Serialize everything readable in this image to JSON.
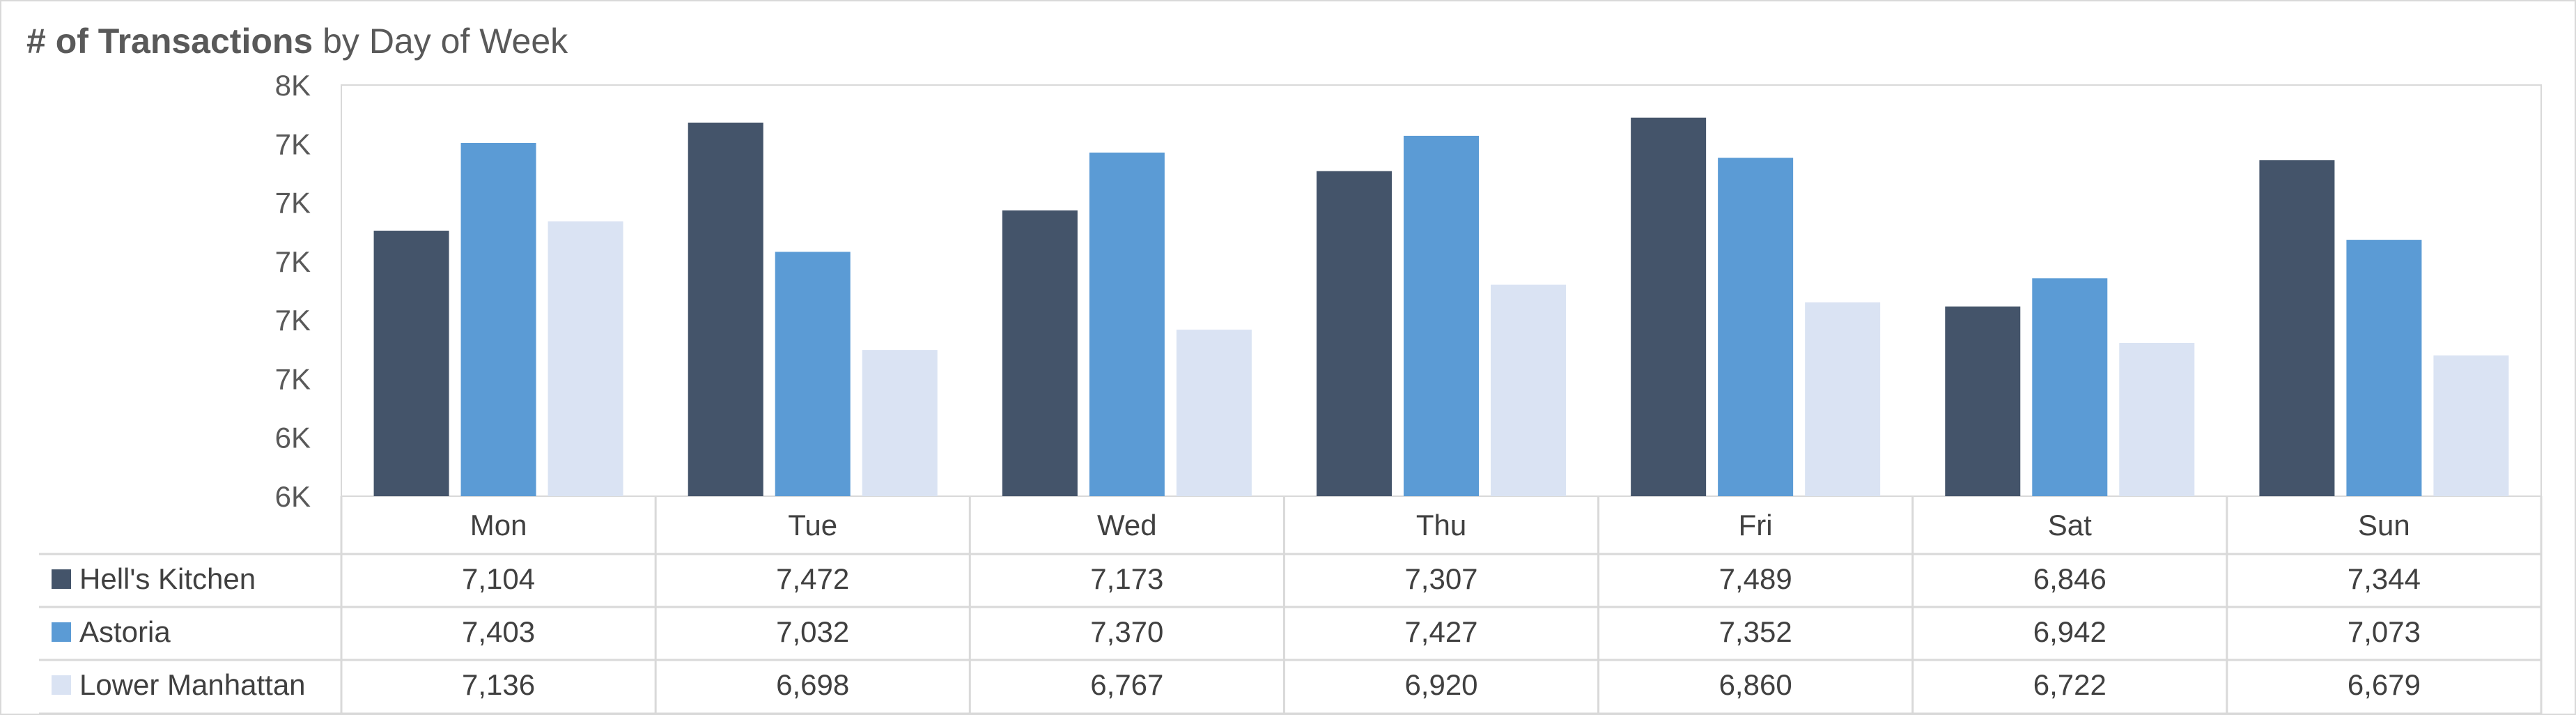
{
  "title": {
    "bold": "# of Transactions",
    "rest": " by Day of Week"
  },
  "chart_data": {
    "type": "bar",
    "title": "# of Transactions by Day of Week",
    "categories": [
      "Mon",
      "Tue",
      "Wed",
      "Thu",
      "Fri",
      "Sat",
      "Sun"
    ],
    "series": [
      {
        "name": "Hell's Kitchen",
        "color": "#44546a",
        "values": [
          7104,
          7472,
          7173,
          7307,
          7489,
          6846,
          7344
        ],
        "labels": [
          "7,104",
          "7,472",
          "7,173",
          "7,307",
          "7,489",
          "6,846",
          "7,344"
        ]
      },
      {
        "name": "Astoria",
        "color": "#5b9bd5",
        "values": [
          7403,
          7032,
          7370,
          7427,
          7352,
          6942,
          7073
        ],
        "labels": [
          "7,403",
          "7,032",
          "7,370",
          "7,427",
          "7,352",
          "6,942",
          "7,073"
        ]
      },
      {
        "name": "Lower Manhattan",
        "color": "#dae3f3",
        "values": [
          7136,
          6698,
          6767,
          6920,
          6860,
          6722,
          6679
        ],
        "labels": [
          "7,136",
          "6,698",
          "6,767",
          "6,920",
          "6,860",
          "6,722",
          "6,679"
        ]
      }
    ],
    "ylim": [
      6200,
      7600
    ],
    "yticks": [
      6200,
      6400,
      6600,
      6800,
      7000,
      7200,
      7400,
      7600
    ],
    "ytick_labels": [
      "6K",
      "6K",
      "7K",
      "7K",
      "7K",
      "7K",
      "7K",
      "8K"
    ],
    "data_table": true,
    "legend": "in data table",
    "grid": false
  }
}
